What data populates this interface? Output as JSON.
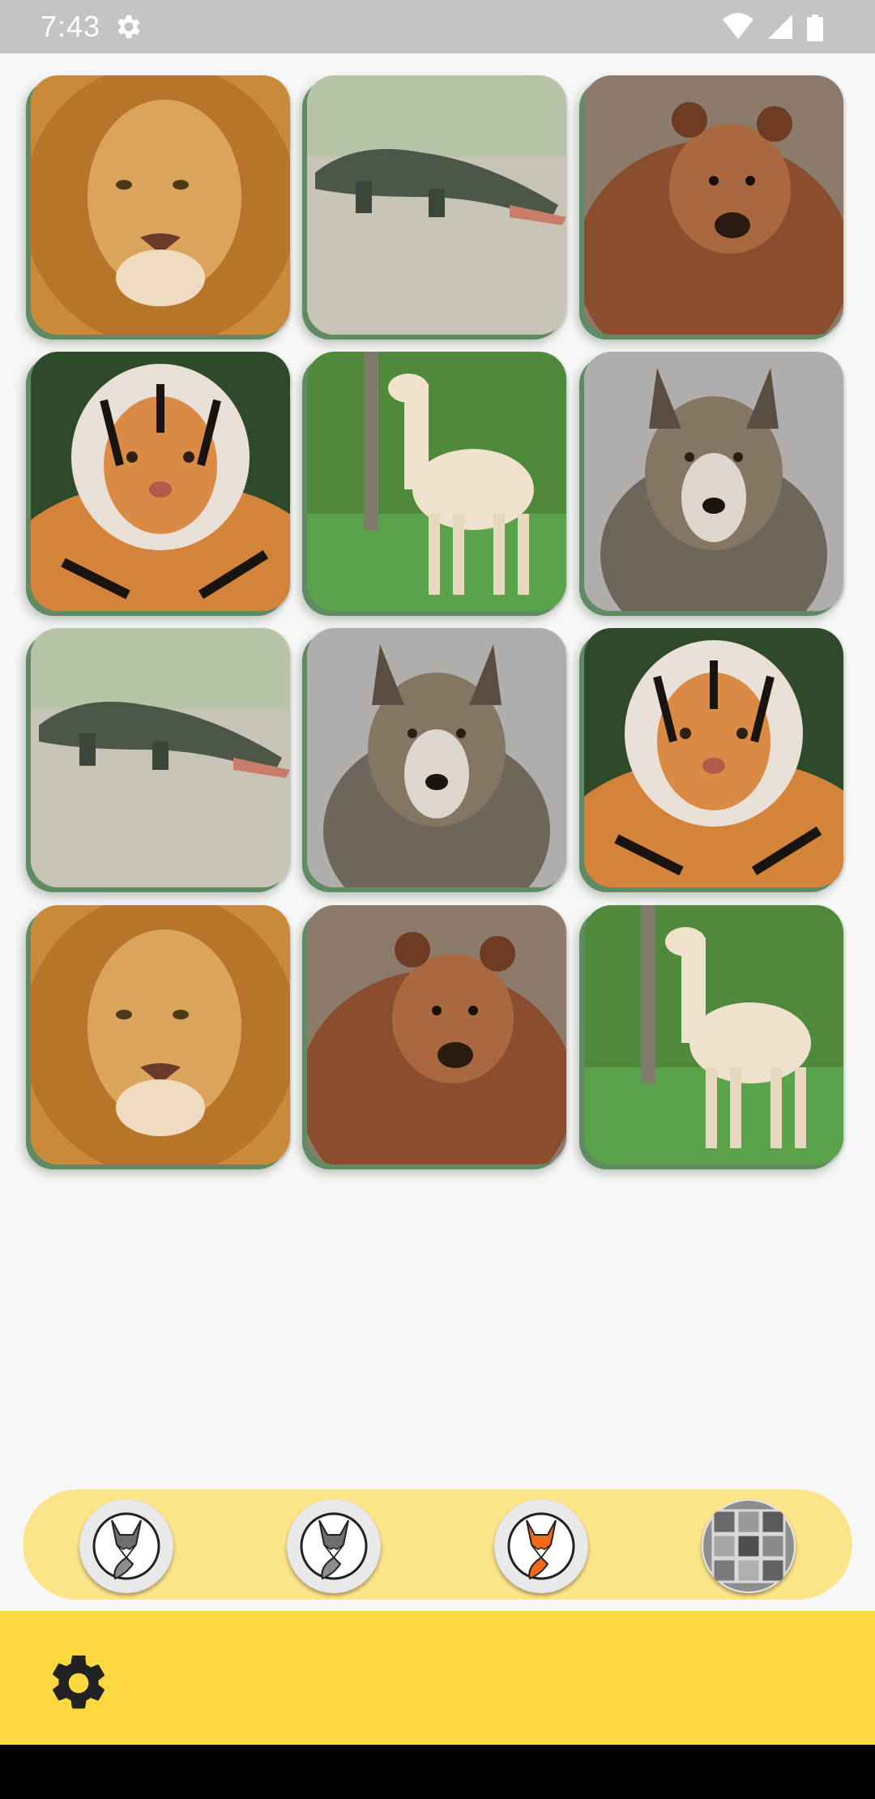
{
  "status_bar": {
    "time": "7:43",
    "icons": [
      "settings-gear-icon",
      "wifi-icon",
      "cellular-signal-icon",
      "battery-icon"
    ]
  },
  "board": {
    "columns": 3,
    "rows": 4,
    "cards": [
      {
        "animal": "lion"
      },
      {
        "animal": "crocodile"
      },
      {
        "animal": "bear"
      },
      {
        "animal": "tiger"
      },
      {
        "animal": "llama"
      },
      {
        "animal": "wolf"
      },
      {
        "animal": "crocodile"
      },
      {
        "animal": "wolf"
      },
      {
        "animal": "tiger"
      },
      {
        "animal": "lion"
      },
      {
        "animal": "bear"
      },
      {
        "animal": "llama"
      }
    ]
  },
  "theme_picker": {
    "options": [
      {
        "icon": "fox-gray-icon",
        "selected": false
      },
      {
        "icon": "fox-gray-icon",
        "selected": false
      },
      {
        "icon": "fox-orange-icon",
        "selected": true
      },
      {
        "icon": "photo-grid-icon",
        "selected": false
      }
    ]
  },
  "bottom_bar": {
    "icon": "settings-gear-icon"
  },
  "colors": {
    "status_bar": "#c4c4c4",
    "background": "#f7f7f7",
    "card_shadow": "#5f8a62",
    "theme_bar": "#fce48a",
    "bottom_bar": "#fdd83f",
    "nav_bar": "#000000"
  }
}
